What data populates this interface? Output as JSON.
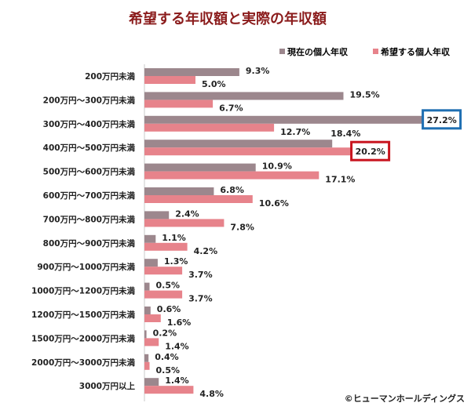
{
  "chart_data": {
    "type": "bar",
    "orientation": "horizontal",
    "title": "希望する年収額と実際の年収額",
    "categories": [
      "200万円未満",
      "200万円～300万円未満",
      "300万円～400万円未満",
      "400万円～500万円未満",
      "500万円～600万円未満",
      "600万円～700万円未満",
      "700万円～800万円未満",
      "800万円～900万円未満",
      "900万円～1000万円未満",
      "1000万円～1200万円未満",
      "1200万円～1500万円未満",
      "1500万円～2000万円未満",
      "2000万円～3000万円未満",
      "3000万円以上"
    ],
    "series": [
      {
        "name": "現在の個人年収",
        "color": "#9c878d",
        "values": [
          9.3,
          19.5,
          27.2,
          18.4,
          10.9,
          6.8,
          2.4,
          1.1,
          1.3,
          0.5,
          0.6,
          0.2,
          0.4,
          1.4
        ],
        "labels": [
          "9.3%",
          "19.5%",
          "27.2%",
          "18.4%",
          "10.9%",
          "6.8%",
          "2.4%",
          "1.1%",
          "1.3%",
          "0.5%",
          "0.6%",
          "0.2%",
          "0.4%",
          "1.4%"
        ]
      },
      {
        "name": "希望する個人年収",
        "color": "#e7838b",
        "values": [
          5.0,
          6.7,
          12.7,
          20.2,
          17.1,
          10.6,
          7.8,
          4.2,
          3.7,
          3.7,
          1.6,
          1.4,
          0.5,
          4.8
        ],
        "labels": [
          "5.0%",
          "6.7%",
          "12.7%",
          "20.2%",
          "17.1%",
          "10.6%",
          "7.8%",
          "4.2%",
          "3.7%",
          "3.7%",
          "1.6%",
          "1.4%",
          "0.5%",
          "4.8%"
        ]
      }
    ],
    "unit": "%",
    "legend": "top-right",
    "grid": false,
    "highlights": [
      {
        "series": 0,
        "category": 2,
        "color": "#1f6fb2"
      },
      {
        "series": 1,
        "category": 3,
        "color": "#c8141e"
      }
    ],
    "title_color": "#8b1c1c"
  },
  "credit": "©ヒューマンホールディングス"
}
